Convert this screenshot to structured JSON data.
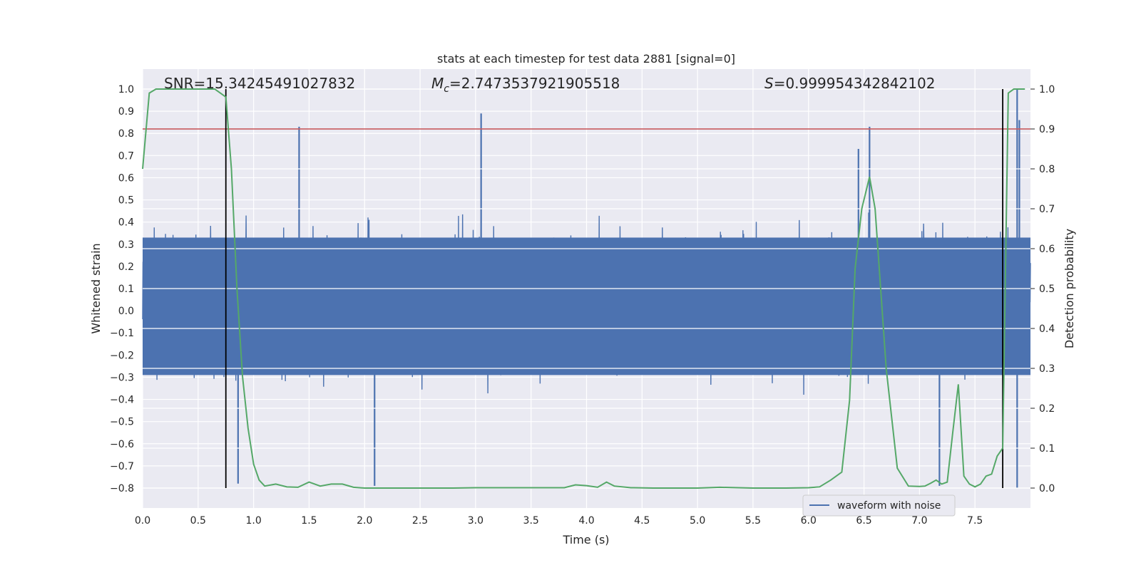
{
  "chart_data": {
    "type": "line",
    "title": "stats at each timestep for test data 2881 [signal=0]",
    "xlabel": "Time (s)",
    "ylabel_left": "Whitened strain",
    "ylabel_right": "Detection probability",
    "xlim": [
      0.0,
      8.0
    ],
    "ylim_left": [
      -0.89,
      1.09
    ],
    "ylim_right": [
      -0.05,
      1.05
    ],
    "x_ticks": [
      "0.0",
      "0.5",
      "1.0",
      "1.5",
      "2.0",
      "2.5",
      "3.0",
      "3.5",
      "4.0",
      "4.5",
      "5.0",
      "5.5",
      "6.0",
      "6.5",
      "7.0",
      "7.5"
    ],
    "y_ticks_left": [
      "1.0",
      "0.9",
      "0.8",
      "0.7",
      "0.6",
      "0.5",
      "0.4",
      "0.3",
      "0.2",
      "0.1",
      "0.0",
      "−0.1",
      "−0.2",
      "−0.3",
      "−0.4",
      "−0.5",
      "−0.6",
      "−0.7",
      "−0.8"
    ],
    "y_ticks_right": [
      "1.0",
      "0.9",
      "0.8",
      "0.7",
      "0.6",
      "0.5",
      "0.4",
      "0.3",
      "0.2",
      "0.1",
      "0.0"
    ],
    "grid": true,
    "annotations": {
      "snr": "SNR=15.34245491027832",
      "mc": "=2.7473537921905518",
      "mc_symbol": "M",
      "mc_sub": "c",
      "s": "=0.999954342842102",
      "s_symbol": "S"
    },
    "threshold_right": 0.9,
    "vertical_lines_x": [
      0.75,
      7.75
    ],
    "waveform": {
      "name": "waveform with noise",
      "color": "#4c72b0",
      "spikes": [
        {
          "x": 1.41,
          "y": 0.83
        },
        {
          "x": 3.05,
          "y": 0.89
        },
        {
          "x": 6.55,
          "y": 0.83
        },
        {
          "x": 7.88,
          "y": 1.0
        },
        {
          "x": 7.9,
          "y": 0.86
        },
        {
          "x": 6.45,
          "y": 0.73
        },
        {
          "x": 2.09,
          "y": -0.79
        },
        {
          "x": 0.86,
          "y": -0.78
        },
        {
          "x": 7.18,
          "y": -0.79
        },
        {
          "x": 7.88,
          "y": -0.8
        }
      ]
    },
    "probability": {
      "color": "#55a868",
      "x": [
        0.0,
        0.06,
        0.12,
        0.2,
        0.3,
        0.4,
        0.5,
        0.6,
        0.65,
        0.7,
        0.75,
        0.8,
        0.85,
        0.9,
        0.95,
        1.0,
        1.05,
        1.1,
        1.2,
        1.3,
        1.4,
        1.5,
        1.6,
        1.7,
        1.8,
        1.9,
        2.0,
        2.2,
        2.5,
        2.8,
        3.0,
        3.5,
        3.8,
        3.9,
        4.0,
        4.1,
        4.18,
        4.25,
        4.4,
        4.6,
        5.0,
        5.2,
        5.5,
        5.8,
        6.0,
        6.1,
        6.2,
        6.3,
        6.37,
        6.42,
        6.48,
        6.55,
        6.6,
        6.65,
        6.7,
        6.8,
        6.9,
        7.0,
        7.05,
        7.1,
        7.15,
        7.2,
        7.25,
        7.3,
        7.35,
        7.4,
        7.45,
        7.5,
        7.55,
        7.6,
        7.65,
        7.7,
        7.75,
        7.8,
        7.85,
        7.9,
        7.95
      ],
      "y": [
        0.8,
        0.99,
        1.0,
        1.0,
        1.0,
        1.0,
        1.0,
        1.0,
        1.0,
        0.99,
        0.98,
        0.8,
        0.5,
        0.28,
        0.15,
        0.06,
        0.02,
        0.005,
        0.01,
        0.003,
        0.002,
        0.015,
        0.005,
        0.01,
        0.01,
        0.002,
        0.0,
        0.0,
        0.0,
        0.0,
        0.001,
        0.001,
        0.001,
        0.008,
        0.006,
        0.002,
        0.015,
        0.005,
        0.001,
        0.0,
        0.0,
        0.002,
        0.0,
        0.0,
        0.001,
        0.003,
        0.02,
        0.04,
        0.22,
        0.55,
        0.7,
        0.78,
        0.7,
        0.5,
        0.3,
        0.05,
        0.005,
        0.004,
        0.005,
        0.012,
        0.02,
        0.01,
        0.015,
        0.14,
        0.26,
        0.03,
        0.01,
        0.003,
        0.01,
        0.03,
        0.035,
        0.08,
        0.1,
        0.99,
        1.0,
        1.0,
        1.0
      ]
    },
    "legend": {
      "label": "waveform with noise",
      "position": "lower-right"
    }
  },
  "colors": {
    "plot_bg": "#eaeaf2",
    "grid": "#ffffff",
    "threshold": "#c44e52",
    "vline": "#000000"
  }
}
